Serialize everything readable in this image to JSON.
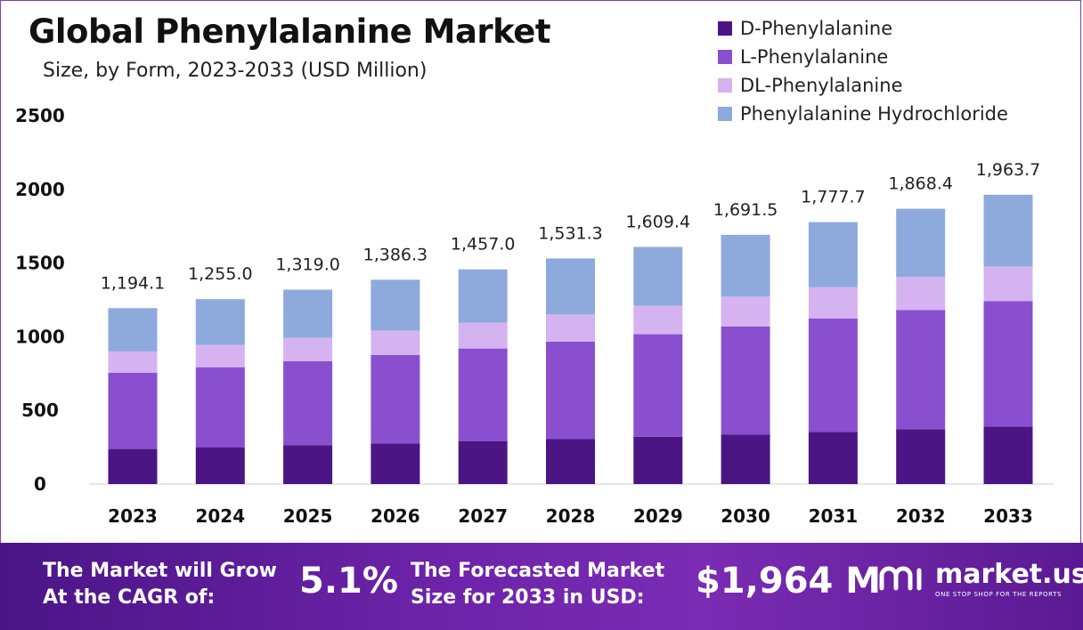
{
  "header": {
    "title": "Global Phenylalanine Market",
    "subtitle": "Size, by Form, 2023-2033 (USD Million)"
  },
  "colors": {
    "d_phenylalanine": "#4b1684",
    "l_phenylalanine": "#8a4fcf",
    "dl_phenylalanine": "#d5b3f0",
    "hydrochloride": "#8eaadd"
  },
  "chart_data": {
    "type": "bar",
    "stacked": true,
    "title": "Global Phenylalanine Market",
    "subtitle": "Size, by Form, 2023-2033 (USD Million)",
    "categories": [
      "2023",
      "2024",
      "2025",
      "2026",
      "2027",
      "2028",
      "2029",
      "2030",
      "2031",
      "2032",
      "2033"
    ],
    "series": [
      {
        "name": "D-Phenylalanine",
        "color": "#4b1684",
        "values": [
          238,
          250,
          263,
          276,
          290,
          305,
          321,
          337,
          354,
          372,
          391
        ]
      },
      {
        "name": "L-Phenylalanine",
        "color": "#8a4fcf",
        "values": [
          517,
          543,
          571,
          600,
          630,
          662,
          696,
          732,
          769,
          809,
          850
        ]
      },
      {
        "name": "DL-Phenylalanine",
        "color": "#d5b3f0",
        "values": [
          143,
          151,
          158,
          166,
          175,
          184,
          193,
          203,
          213,
          224,
          236
        ]
      },
      {
        "name": "Phenylalanine Hydrochloride",
        "color": "#8eaadd",
        "values": [
          296.1,
          311.0,
          327.0,
          344.3,
          362.0,
          380.3,
          399.4,
          419.5,
          441.7,
          463.4,
          486.7
        ]
      }
    ],
    "totals": [
      1194.1,
      1255.0,
      1319.0,
      1386.3,
      1457.0,
      1531.3,
      1609.4,
      1691.5,
      1777.7,
      1868.4,
      1963.7
    ],
    "total_labels": [
      "1,194.1",
      "1,255.0",
      "1,319.0",
      "1,386.3",
      "1,457.0",
      "1,531.3",
      "1,609.4",
      "1,691.5",
      "1,777.7",
      "1,868.4",
      "1,963.7"
    ],
    "ylim": [
      0,
      2500
    ],
    "yticks": [
      0,
      500,
      1000,
      1500,
      2000,
      2500
    ],
    "xlabel": "",
    "ylabel": "",
    "legend_position": "top-right",
    "grid": false
  },
  "footer": {
    "cagr_text_line1": "The Market will Grow",
    "cagr_text_line2": "At the CAGR of:",
    "cagr_value": "5.1%",
    "forecast_text_line1": "The Forecasted Market",
    "forecast_text_line2": "Size for 2033 in USD:",
    "forecast_value": "$1,964 M",
    "brand_name": "market.us",
    "brand_tagline": "ONE STOP SHOP FOR THE REPORTS"
  }
}
